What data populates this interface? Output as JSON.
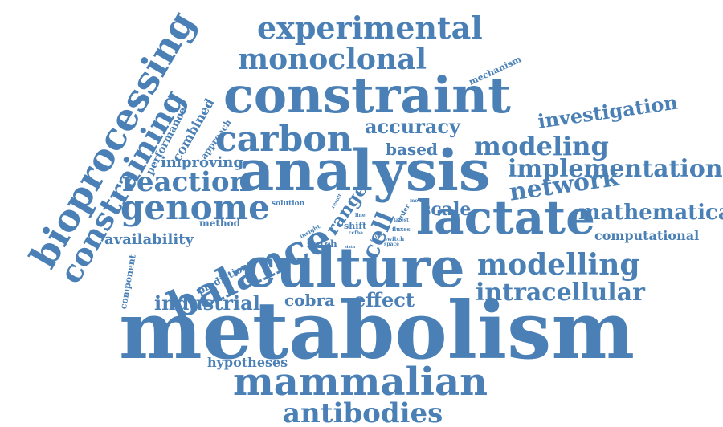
{
  "cloud": {
    "color": "#4a80b5",
    "words": {
      "metabolism": "metabolism",
      "culture": "culture",
      "analysis": "analysis",
      "constraint": "constraint",
      "lactate": "lactate",
      "balance": "balance",
      "mammalian": "mammalian",
      "bioprocessing": "bioprocessing",
      "constraining": "constraining",
      "carbon": "carbon",
      "genome": "genome",
      "experimental": "experimental",
      "monoclonal": "monoclonal",
      "antibodies": "antibodies",
      "modelling": "modelling",
      "modeling": "modeling",
      "reaction": "reaction",
      "network": "network",
      "implementation": "implementation",
      "intracellular": "intracellular",
      "mathematical": "mathematical",
      "investigation": "investigation",
      "accuracy": "accuracy",
      "cell": "cell",
      "industrial": "industrial",
      "effect": "effect",
      "cobra": "cobra",
      "scale": "scale",
      "range": "range",
      "based": "based",
      "computational": "computational",
      "availability": "availability",
      "improving": "improving",
      "hypotheses": "hypotheses",
      "combined": "combined",
      "performance": "performance",
      "approach": "approach",
      "mechanism": "mechanism",
      "method": "method",
      "prediction": "prediction",
      "component": "component",
      "solution": "solution",
      "batch": "batch",
      "shift": "shift",
      "insight": "insight",
      "result": "result",
      "line": "line",
      "order": "order",
      "ccfba": "ccfba",
      "value": "value",
      "data": "data",
      "model": "model",
      "latest": "latest",
      "fluxes": "fluxes",
      "switch": "switch",
      "space": "space"
    }
  }
}
